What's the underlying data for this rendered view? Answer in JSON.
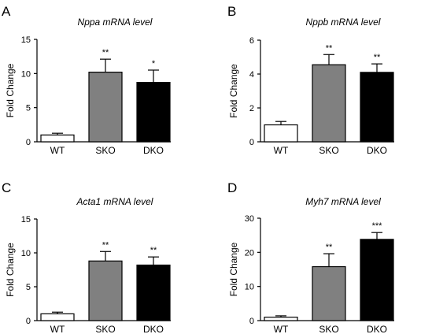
{
  "chart_data": [
    {
      "panel": "A",
      "type": "bar",
      "title": "Nppa mRNA level",
      "title_italic_part": "Nppa",
      "title_rest": " mRNA level",
      "ylabel": "Fold Change",
      "ylim": [
        0,
        15
      ],
      "yticks": [
        0,
        5,
        10,
        15
      ],
      "categories": [
        "WT",
        "SKO",
        "DKO"
      ],
      "values": [
        1.0,
        10.2,
        8.7
      ],
      "errors": [
        0.25,
        1.9,
        1.8
      ],
      "significance": [
        "",
        "**",
        "*"
      ],
      "colors": [
        "#ffffff",
        "#808080",
        "#000000"
      ]
    },
    {
      "panel": "B",
      "type": "bar",
      "title": "Nppb mRNA level",
      "ylabel": "Fold Change",
      "ylim": [
        0,
        6
      ],
      "yticks": [
        0,
        2,
        4,
        6
      ],
      "categories": [
        "WT",
        "SKO",
        "DKO"
      ],
      "values": [
        1.0,
        4.55,
        4.1
      ],
      "errors": [
        0.2,
        0.6,
        0.5
      ],
      "significance": [
        "",
        "**",
        "**"
      ],
      "colors": [
        "#ffffff",
        "#808080",
        "#000000"
      ]
    },
    {
      "panel": "C",
      "type": "bar",
      "title": "Acta1 mRNA level",
      "ylabel": "Fold Change",
      "ylim": [
        0,
        15
      ],
      "yticks": [
        0,
        5,
        10,
        15
      ],
      "categories": [
        "WT",
        "SKO",
        "DKO"
      ],
      "values": [
        1.0,
        8.8,
        8.2
      ],
      "errors": [
        0.25,
        1.4,
        1.2
      ],
      "significance": [
        "",
        "**",
        "**"
      ],
      "colors": [
        "#ffffff",
        "#808080",
        "#000000"
      ]
    },
    {
      "panel": "D",
      "type": "bar",
      "title": "Myh7 mRNA level",
      "ylabel": "Fold Change",
      "ylim": [
        0,
        30
      ],
      "yticks": [
        0,
        10,
        20,
        30
      ],
      "categories": [
        "WT",
        "SKO",
        "DKO"
      ],
      "values": [
        1.0,
        15.8,
        23.8
      ],
      "errors": [
        0.4,
        3.8,
        2.0
      ],
      "significance": [
        "",
        "**",
        "***"
      ],
      "colors": [
        "#ffffff",
        "#808080",
        "#000000"
      ]
    }
  ]
}
